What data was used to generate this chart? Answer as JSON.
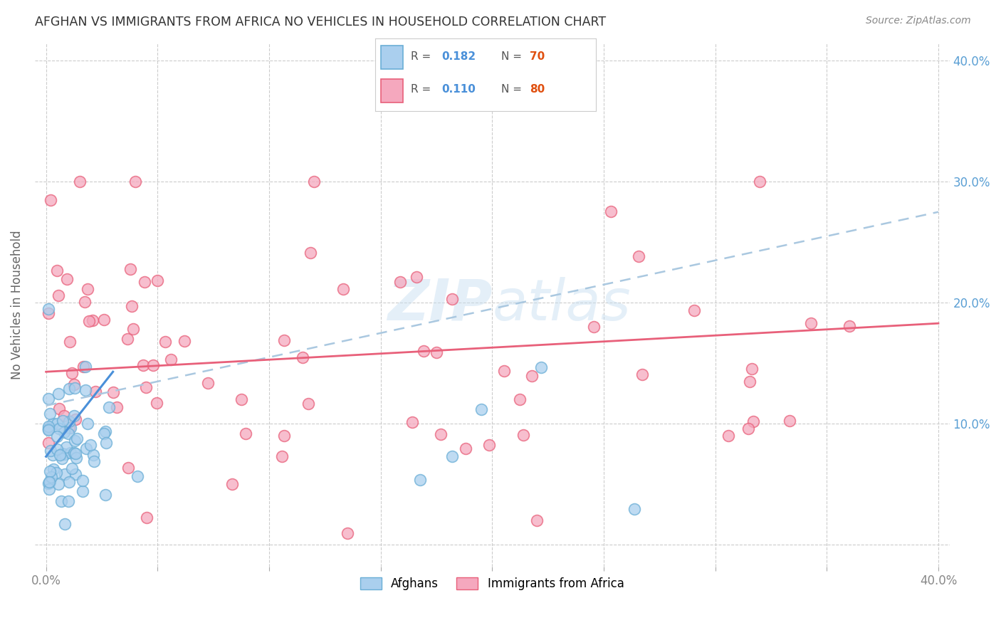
{
  "title": "AFGHAN VS IMMIGRANTS FROM AFRICA NO VEHICLES IN HOUSEHOLD CORRELATION CHART",
  "source": "Source: ZipAtlas.com",
  "ylabel": "No Vehicles in Household",
  "afghan_color": "#aacfee",
  "africa_color": "#f5a8be",
  "afghan_edge_color": "#6aaed6",
  "africa_edge_color": "#e8607a",
  "afghan_line_color": "#4a90d9",
  "africa_line_color": "#e8607a",
  "dashed_line_color": "#aac8e0",
  "background_color": "#ffffff",
  "grid_color": "#cccccc",
  "title_color": "#333333",
  "right_axis_color": "#5a9fd4",
  "watermark_color": "#c5ddf0",
  "legend_border_color": "#cccccc",
  "r_value_color": "#4a90d9",
  "n_value_color": "#e05010"
}
